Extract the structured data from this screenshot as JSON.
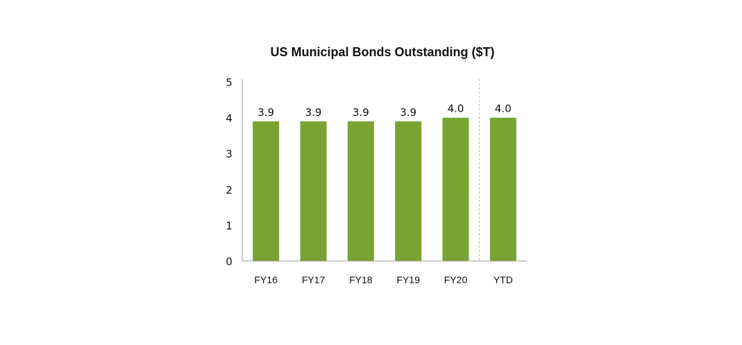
{
  "chart_data": {
    "type": "bar",
    "title": "US Municipal Bonds Outstanding ($T)",
    "categories": [
      "FY16",
      "FY17",
      "FY18",
      "FY19",
      "FY20",
      "YTD"
    ],
    "values": [
      3.9,
      3.9,
      3.9,
      3.9,
      4.0,
      4.0
    ],
    "data_labels": [
      "3.9",
      "3.9",
      "3.9",
      "3.9",
      "4.0",
      "4.0"
    ],
    "xlabel": "",
    "ylabel": "",
    "ylim": [
      0,
      5
    ],
    "yticks": [
      "0",
      "1",
      "2",
      "3",
      "4",
      "5"
    ],
    "grid": false,
    "bar_color": "#7aa333",
    "divider_before": "YTD"
  }
}
